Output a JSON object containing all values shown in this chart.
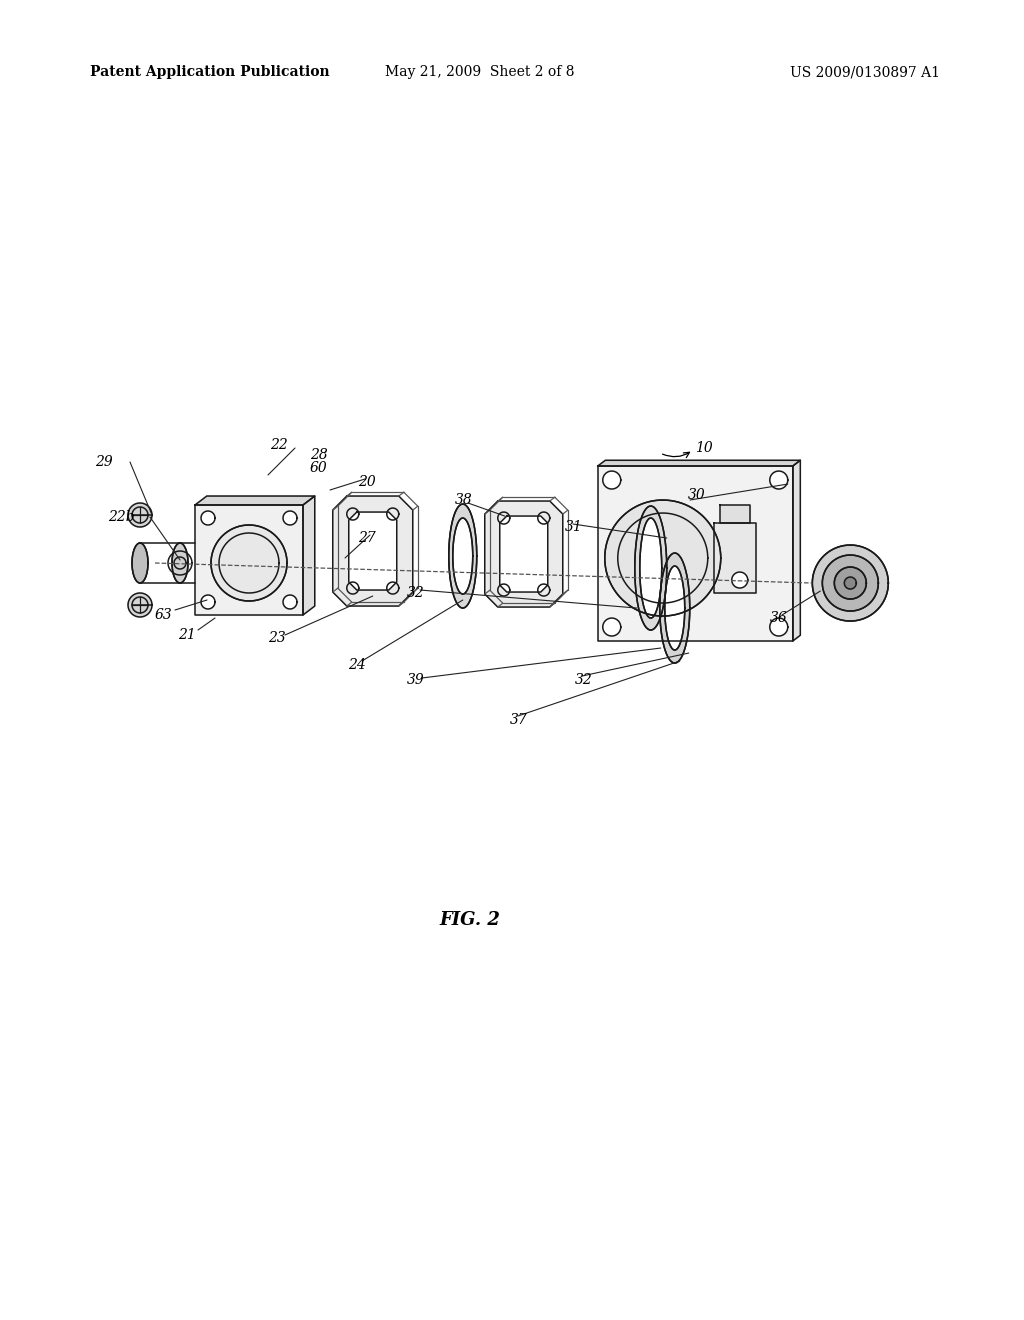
{
  "background_color": "#ffffff",
  "header_left": "Patent Application Publication",
  "header_center": "May 21, 2009  Sheet 2 of 8",
  "header_right": "US 2009/0130897 A1",
  "figure_label": "FIG. 2",
  "line_color": "#1a1a1a",
  "lw": 1.1
}
